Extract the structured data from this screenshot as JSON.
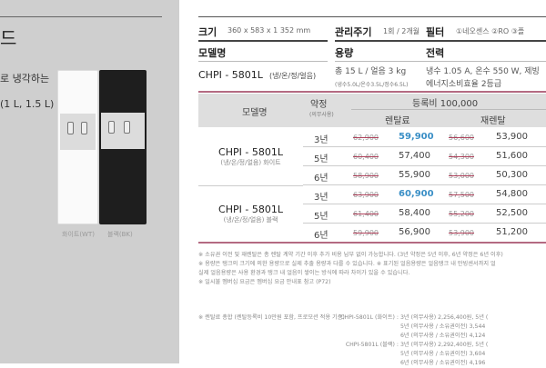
{
  "left": {
    "title": "드",
    "text1": "로 냉각하는",
    "text2": "(1 L, 1.5 L)",
    "captions": [
      "화이트(WT)",
      "블랙(BK)"
    ]
  },
  "specs": {
    "size_label": "크기",
    "size_value": "360 x 583 x 1 352 mm",
    "cycle_label": "관리주기",
    "cycle_value": "1회 / 2개월",
    "filter_label": "필터",
    "filter_value": "①네오센스 ②RO ③플",
    "model_label": "모델명",
    "capacity_label": "용량",
    "power_label": "전력",
    "model_value": "CHPI - 5801L",
    "model_sub": "(냉/온/정/얼음)",
    "capacity_value": "총 15 L / 얼음 3 kg",
    "capacity_sub": "(냉수5.0L/온수3.5L/정수6.5L)",
    "power_value": "냉수 1.05 A, 온수 550 W, 제빙",
    "power_sub": "에너지소비효율 2등급"
  },
  "table": {
    "headers": {
      "model": "모델명",
      "term": "약정",
      "term_sub": "(의무사용)",
      "fee": "등록비 100,000",
      "rental": "렌탈료",
      "rerental": "재렌탈"
    },
    "groups": [
      {
        "model": "CHPI - 5801L",
        "sub": "(냉/온/정/얼음) 화이트",
        "rows": [
          {
            "term": "3년",
            "old": "62,900",
            "price": "59,900",
            "re_old": "56,600",
            "re_price": "53,900",
            "highlight": true
          },
          {
            "term": "5년",
            "old": "60,400",
            "price": "57,400",
            "re_old": "54,300",
            "re_price": "51,600"
          },
          {
            "term": "6년",
            "old": "58,900",
            "price": "55,900",
            "re_old": "53,000",
            "re_price": "50,300"
          }
        ]
      },
      {
        "model": "CHPI - 5801L",
        "sub": "(냉/온/정/얼음) 블랙",
        "rows": [
          {
            "term": "3년",
            "old": "63,900",
            "price": "60,900",
            "re_old": "57,500",
            "re_price": "54,800",
            "highlight": true
          },
          {
            "term": "5년",
            "old": "61,400",
            "price": "58,400",
            "re_old": "55,200",
            "re_price": "52,500"
          },
          {
            "term": "6년",
            "old": "59,900",
            "price": "56,900",
            "re_old": "53,900",
            "re_price": "51,200"
          }
        ]
      }
    ],
    "accent": "#3a8fc6",
    "rule_color": "#b46a82"
  },
  "notes": [
    "※ 소유권 이전 및 재렌탈은 총 렌탈 계약 기간 이후 추가 비용 납부 없이 가능합니다. (3년 약정은 5년 이후, 6년 약정은 6년 이후)",
    "※ 용량은 탱크의 크기에 의한 용량으로 실제 추출 용량과 다를 수 있습니다.  ※ 표기된 얼음용량은 얼음탱크 내 만빙센서까지 얼",
    "   실제 얼음용량은 사용 환경과 탱크 내 얼음이 쌓이는 방식에 따라 차이가 있을 수 있습니다.",
    "※ 일시불 멤버십 요금은 멤버십 요금 안내표 참고 (P72)"
  ],
  "totals": {
    "label": "※ 렌탈료 총합 (렌탈등록비 10만원 포함, 프로모션 적용 기준)",
    "lines": [
      {
        "model": "CHPI-5801L (화이트) :",
        "text": "3년 (의무사용) 2,256,400원, 5년 ("
      },
      {
        "model": "",
        "text": "5년 (의무사용 / 소유권이전) 3,544"
      },
      {
        "model": "",
        "text": "6년 (의무사용 / 소유권이전) 4,124"
      },
      {
        "model": "CHPI-5801L (블랙) :",
        "text": "3년 (의무사용) 2,292,400원, 5년 ("
      },
      {
        "model": "",
        "text": "5년 (의무사용 / 소유권이전) 3,604"
      },
      {
        "model": "",
        "text": "6년 (의무사용 / 소유권이전) 4,196"
      }
    ]
  }
}
